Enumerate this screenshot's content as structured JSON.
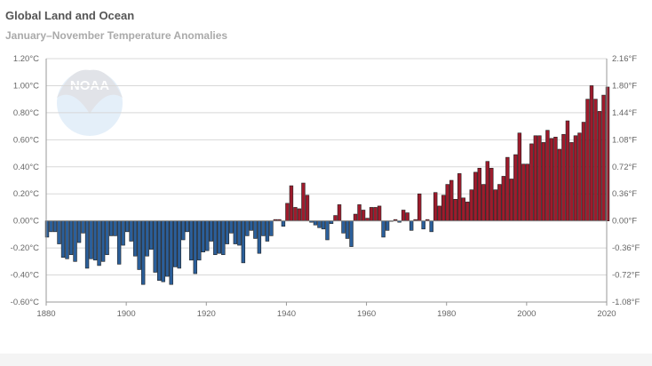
{
  "chart_data": {
    "type": "bar",
    "title": "Global Land and Ocean",
    "subtitle": "January–November Temperature Anomalies",
    "xlabel": "",
    "ylabel": "",
    "xlim": [
      1880,
      2020
    ],
    "ylim": [
      -0.6,
      1.2
    ],
    "y_ticks": [
      "-0.60°C",
      "-0.40°C",
      "-0.20°C",
      "0.00°C",
      "0.20°C",
      "0.40°C",
      "0.60°C",
      "0.80°C",
      "1.00°C",
      "1.20°C"
    ],
    "y2_ticks": [
      "-1.08°F",
      "-0.72°F",
      "-0.36°F",
      "0.00°F",
      "0.36°F",
      "0.72°F",
      "1.08°F",
      "1.44°F",
      "1.80°F",
      "2.16°F"
    ],
    "x_ticks": [
      "1880",
      "1900",
      "1920",
      "1940",
      "1960",
      "1980",
      "2000",
      "2020"
    ],
    "grid": true,
    "colors": {
      "positive": "#9e1b2c",
      "negative": "#2b5f9a",
      "outline": "#222222"
    },
    "watermark": "NOAA",
    "x_start": 1880,
    "values": [
      -0.12,
      -0.08,
      -0.08,
      -0.17,
      -0.27,
      -0.28,
      -0.25,
      -0.3,
      -0.16,
      -0.09,
      -0.35,
      -0.28,
      -0.29,
      -0.33,
      -0.3,
      -0.25,
      -0.11,
      -0.11,
      -0.32,
      -0.18,
      -0.08,
      -0.15,
      -0.26,
      -0.36,
      -0.47,
      -0.26,
      -0.21,
      -0.38,
      -0.44,
      -0.45,
      -0.41,
      -0.47,
      -0.34,
      -0.35,
      -0.14,
      -0.08,
      -0.29,
      -0.39,
      -0.29,
      -0.23,
      -0.22,
      -0.15,
      -0.25,
      -0.24,
      -0.25,
      -0.17,
      -0.09,
      -0.17,
      -0.18,
      -0.31,
      -0.11,
      -0.07,
      -0.13,
      -0.24,
      -0.11,
      -0.15,
      -0.11,
      0.01,
      0.01,
      -0.04,
      0.13,
      0.26,
      0.1,
      0.09,
      0.28,
      0.19,
      -0.01,
      -0.03,
      -0.05,
      -0.06,
      -0.14,
      -0.02,
      0.04,
      0.12,
      -0.09,
      -0.13,
      -0.19,
      0.05,
      0.12,
      0.08,
      0.02,
      0.1,
      0.1,
      0.11,
      -0.12,
      -0.07,
      0.0,
      0.01,
      -0.01,
      0.08,
      0.06,
      -0.07,
      0.01,
      0.2,
      -0.06,
      0.01,
      -0.08,
      0.21,
      0.11,
      0.19,
      0.27,
      0.3,
      0.16,
      0.35,
      0.17,
      0.14,
      0.23,
      0.36,
      0.39,
      0.27,
      0.44,
      0.39,
      0.23,
      0.27,
      0.33,
      0.47,
      0.31,
      0.49,
      0.65,
      0.42,
      0.42,
      0.57,
      0.63,
      0.63,
      0.58,
      0.67,
      0.61,
      0.62,
      0.53,
      0.64,
      0.74,
      0.58,
      0.63,
      0.65,
      0.73,
      0.9,
      1.0,
      0.9,
      0.81,
      0.93,
      0.99
    ]
  }
}
